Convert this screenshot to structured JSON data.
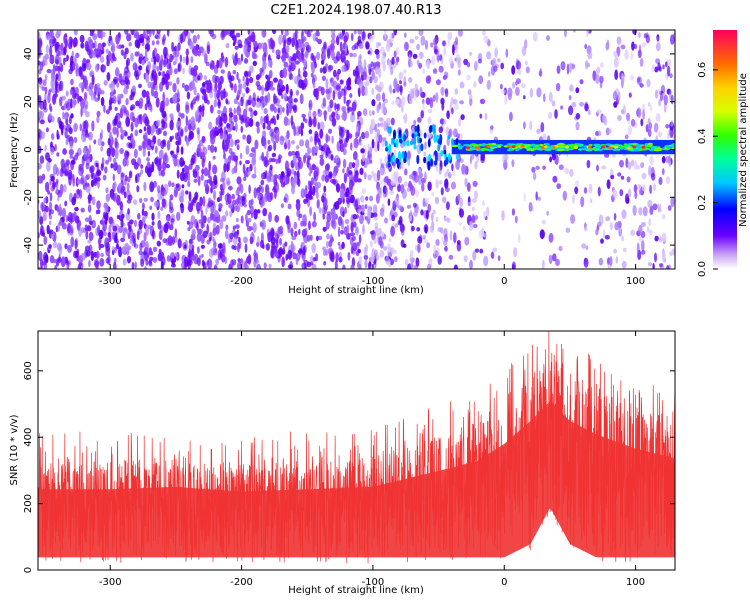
{
  "title": "C2E1.2024.198.07.40.R13",
  "chart_data": [
    {
      "type": "heatmap",
      "xlabel": "Height of straight line (km)",
      "ylabel": "Frequency (Hz)",
      "xlim": [
        -355,
        130
      ],
      "ylim": [
        -50,
        50
      ],
      "x_ticks": [
        -300,
        -200,
        -100,
        0,
        100
      ],
      "y_ticks": [
        -40,
        -20,
        0,
        20,
        40
      ],
      "colorbar": {
        "label": "Normalized spectral amplitude",
        "range": [
          0.0,
          0.72
        ],
        "ticks": [
          0.0,
          0.2,
          0.4,
          0.6
        ],
        "tick_labels": [
          "0.0",
          "0.2",
          "0.4",
          "0.6"
        ]
      },
      "features": [
        {
          "description_x_range": [
            -90,
            130
          ],
          "frequency_hz": 1,
          "peak_amplitude": 0.7
        }
      ],
      "grid": false
    },
    {
      "type": "area",
      "xlabel": "Height of straight line (km)",
      "ylabel": "SNR (10 * v/v)",
      "xlim": [
        -355,
        130
      ],
      "ylim": [
        0,
        720
      ],
      "x_ticks": [
        -300,
        -200,
        -100,
        0,
        100
      ],
      "y_ticks": [
        0,
        200,
        400,
        600
      ],
      "series_color": "#f03232",
      "envelope": {
        "x": [
          -355,
          -300,
          -250,
          -200,
          -150,
          -100,
          -70,
          -40,
          -20,
          0,
          20,
          35,
          50,
          70,
          100,
          130
        ],
        "upper": [
          330,
          330,
          340,
          320,
          330,
          340,
          380,
          420,
          450,
          520,
          600,
          640,
          600,
          560,
          500,
          460
        ],
        "lower": [
          20,
          20,
          20,
          20,
          20,
          20,
          20,
          20,
          20,
          20,
          60,
          170,
          60,
          20,
          20,
          20
        ]
      },
      "grid": false
    }
  ]
}
